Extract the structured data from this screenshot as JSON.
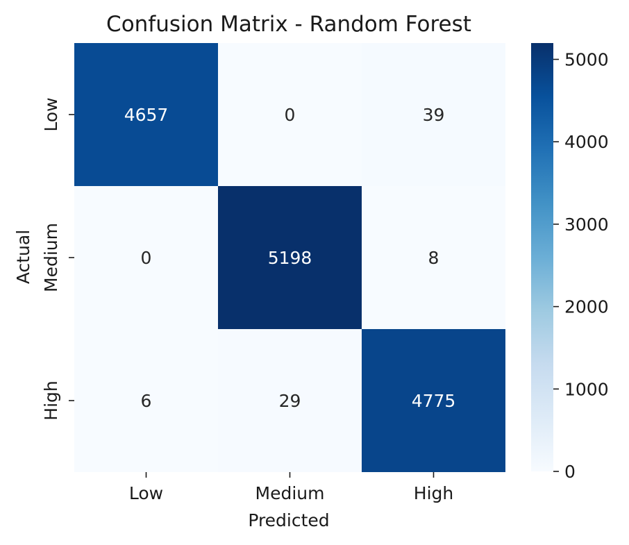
{
  "chart_data": {
    "type": "heatmap",
    "title": "Confusion Matrix - Random Forest",
    "xlabel": "Predicted",
    "ylabel": "Actual",
    "x_categories": [
      "Low",
      "Medium",
      "High"
    ],
    "y_categories": [
      "Low",
      "Medium",
      "High"
    ],
    "matrix": [
      [
        4657,
        0,
        39
      ],
      [
        0,
        5198,
        8
      ],
      [
        6,
        29,
        4775
      ]
    ],
    "colormap": "Blues",
    "color_range": [
      0,
      5198
    ],
    "colorbar_ticks": [
      0,
      1000,
      2000,
      3000,
      4000,
      5000
    ],
    "colorbar_tick_labels": [
      "0",
      "1000",
      "2000",
      "3000",
      "4000",
      "5000"
    ],
    "annotation_color_light": "#ffffff",
    "annotation_color_dark": "#262626"
  }
}
